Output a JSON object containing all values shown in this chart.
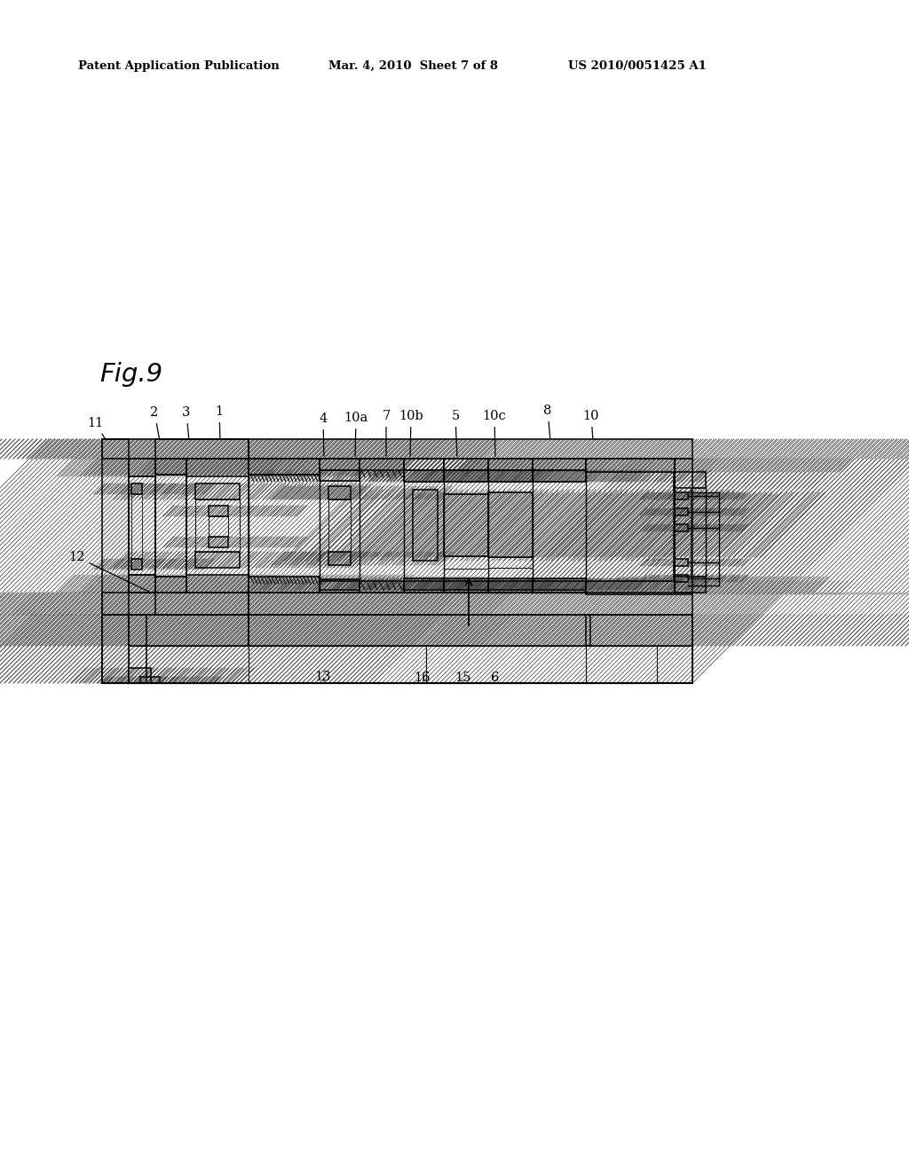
{
  "bg_color": "#ffffff",
  "header_left": "Patent Application Publication",
  "header_mid": "Mar. 4, 2010  Sheet 7 of 8",
  "header_right": "US 2010/0051425 A1",
  "fig_label": "Fig.9",
  "hatch_color": "#444444",
  "line_color": "#000000"
}
